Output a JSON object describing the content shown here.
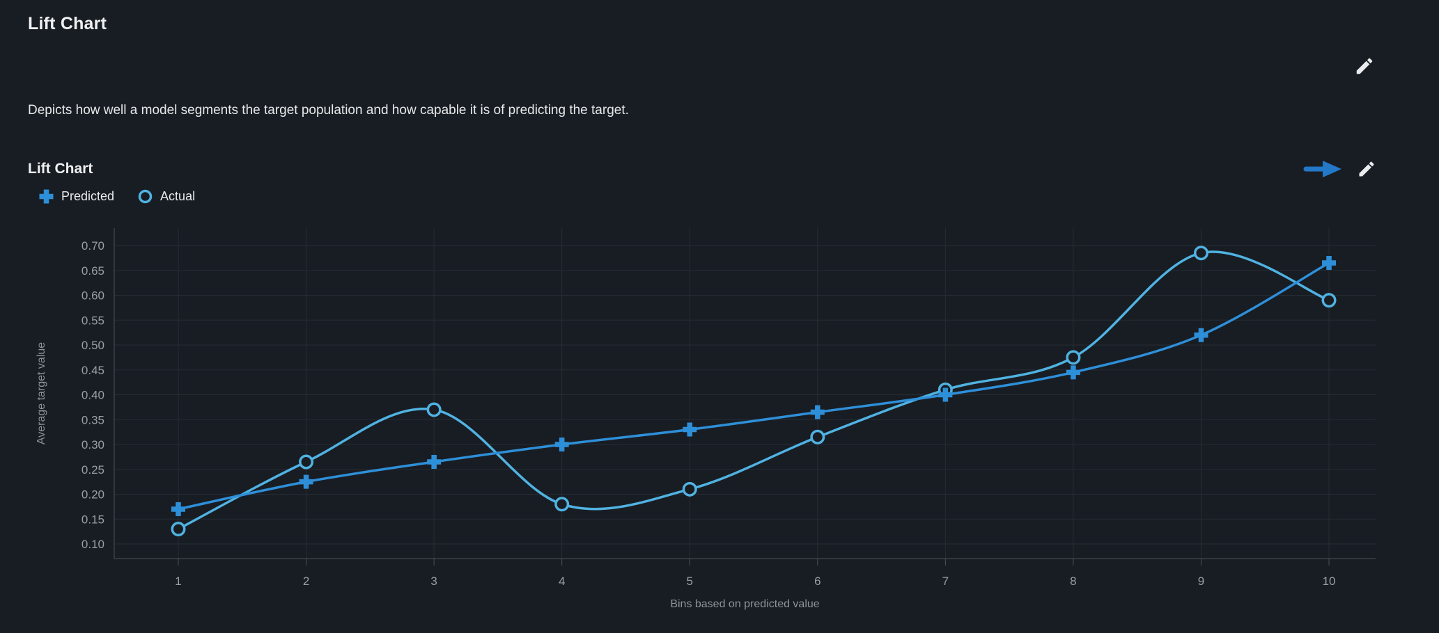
{
  "page": {
    "title": "Lift Chart",
    "description": "Depicts how well a model segments the target population and how capable it is of predicting the target."
  },
  "chart_card": {
    "title": "Lift Chart",
    "legend": [
      {
        "label": "Predicted",
        "marker": "plus",
        "color": "#2e8fd9"
      },
      {
        "label": "Actual",
        "marker": "circle",
        "color": "#50b2e2"
      }
    ]
  },
  "icons": {
    "top_edit": "pencil-icon",
    "card_open": "arrow-right-icon",
    "card_edit": "pencil-icon"
  },
  "colors": {
    "background": "#181d23",
    "grid": "#262d34",
    "axis": "#4b5158",
    "tick_label": "#9b9fa4",
    "axis_title": "#8f9398",
    "text": "#e9ebed",
    "predicted": "#2e8fd9",
    "actual": "#50b2e2",
    "arrow": "#2478c8",
    "pencil": "#e9ebed"
  },
  "chart_data": {
    "type": "line",
    "title": "Lift Chart",
    "xlabel": "Bins based on predicted value",
    "ylabel": "Average target value",
    "x": [
      1,
      2,
      3,
      4,
      5,
      6,
      7,
      8,
      9,
      10
    ],
    "series": [
      {
        "name": "Predicted",
        "marker": "plus",
        "color": "#2e8fd9",
        "smooth": true,
        "values": [
          0.17,
          0.225,
          0.265,
          0.3,
          0.33,
          0.365,
          0.4,
          0.445,
          0.52,
          0.665
        ]
      },
      {
        "name": "Actual",
        "marker": "circle",
        "color": "#50b2e2",
        "smooth": true,
        "values": [
          0.13,
          0.265,
          0.37,
          0.18,
          0.21,
          0.315,
          0.41,
          0.475,
          0.685,
          0.59
        ]
      }
    ],
    "yticks": [
      0.1,
      0.15,
      0.2,
      0.25,
      0.3,
      0.35,
      0.4,
      0.45,
      0.5,
      0.55,
      0.6,
      0.65,
      0.7
    ],
    "ylim": [
      0.07,
      0.735
    ],
    "grid": true,
    "legend_position": "top-left"
  }
}
